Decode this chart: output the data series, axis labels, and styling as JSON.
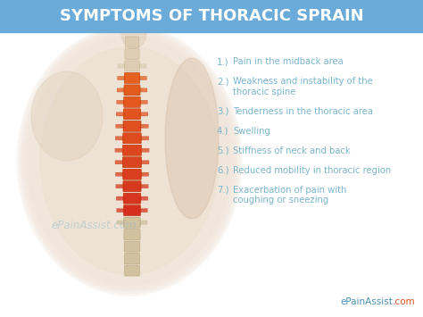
{
  "title": "SYMPTOMS OF THORACIC SPRAIN",
  "title_bg_color": "#6aabda",
  "title_text_color": "#ffffff",
  "bg_color": "#f5f5f5",
  "symptoms_numbered": [
    [
      "1.)",
      "Pain in the midback area"
    ],
    [
      "2.)",
      "Weakness and instability of the\nthoracic spine"
    ],
    [
      "3.)",
      "Tenderness in the thoracic area"
    ],
    [
      "4.)",
      "Swelling"
    ],
    [
      "5.)",
      "Stiffness of neck and back"
    ],
    [
      "6.)",
      "Reduced mobility in thoracic region"
    ],
    [
      "7.)",
      "Exacerbation of pain with\ncoughing or sneezing"
    ]
  ],
  "symptom_text_color": "#7ab5cc",
  "watermark_text": "ePainAssist.com",
  "watermark_color": "#8cb8c8",
  "footer_text": "ePainAssist.com",
  "footer_color_main": "#4a90b0",
  "footer_color_com": "#e05020",
  "title_fontsize": 13,
  "symptom_fontsize": 7.2,
  "watermark_fontsize": 8.5,
  "footer_fontsize": 7.5
}
